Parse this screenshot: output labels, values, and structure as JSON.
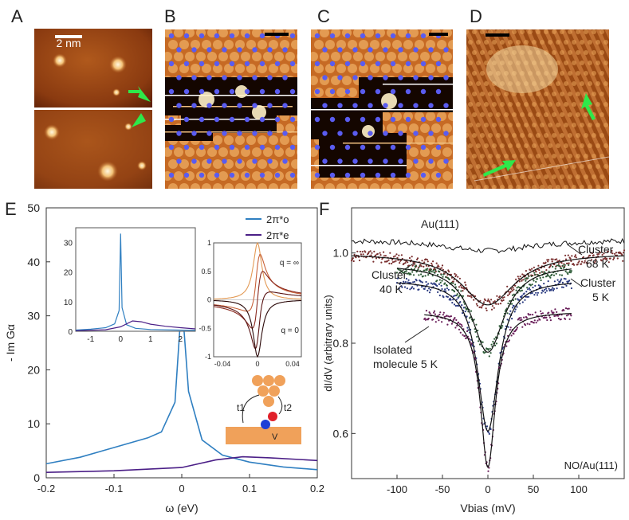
{
  "panel_letters": {
    "a": "A",
    "b": "B",
    "c": "C",
    "d": "D",
    "e": "E",
    "f": "F"
  },
  "panel_a": {
    "scale_label": "2 nm"
  },
  "chart_data": [
    {
      "panel": "E",
      "type": "line",
      "title": "",
      "xlabel": "ω (eV)",
      "ylabel": "- Im Gα",
      "xlim": [
        -0.2,
        0.2
      ],
      "ylim": [
        0,
        50
      ],
      "xticks": [
        "-0.2",
        "-0.1",
        "0",
        "0.1",
        "0.2"
      ],
      "yticks": [
        "0",
        "10",
        "20",
        "30",
        "40",
        "50"
      ],
      "legend": [
        "2π*o",
        "2π*e"
      ],
      "legend_position": "top-right",
      "series": [
        {
          "name": "2π*o",
          "color": "#2f7fc1",
          "x": [
            -0.2,
            -0.15,
            -0.1,
            -0.05,
            -0.03,
            -0.01,
            0,
            0.01,
            0.03,
            0.06,
            0.1,
            0.15,
            0.2
          ],
          "y": [
            2.6,
            3.8,
            5.6,
            7.4,
            8.5,
            14,
            33,
            16,
            7,
            4.2,
            2.9,
            2.0,
            1.5
          ]
        },
        {
          "name": "2π*e",
          "color": "#4b1f87",
          "x": [
            -0.2,
            -0.1,
            0,
            0.05,
            0.09,
            0.13,
            0.2
          ],
          "y": [
            1.0,
            1.3,
            1.9,
            3.3,
            3.9,
            3.7,
            3.2
          ]
        }
      ],
      "inset_wide": {
        "xlim": [
          -1.5,
          2.5
        ],
        "ylim": [
          0,
          35
        ],
        "xticks": [
          "-1",
          "0",
          "1",
          "2"
        ],
        "yticks": [
          "0",
          "10",
          "20",
          "30"
        ],
        "series": [
          {
            "name": "2π*o",
            "x": [
              -1.5,
              -1,
              -0.5,
              -0.2,
              -0.05,
              0,
              0.05,
              0.2,
              0.5,
              1,
              2.5
            ],
            "y": [
              0.4,
              0.7,
              1.2,
              2.5,
              7,
              33,
              8,
              2.2,
              1.0,
              0.6,
              0.3
            ]
          },
          {
            "name": "2π*e",
            "x": [
              -1.5,
              -0.5,
              0,
              0.4,
              0.7,
              1.0,
              1.5,
              2.0,
              2.5
            ],
            "y": [
              0.2,
              0.5,
              1.5,
              3.5,
              3.2,
              2.4,
              1.7,
              1.2,
              0.8
            ]
          }
        ]
      },
      "inset_fano": {
        "xlim": [
          -0.05,
          0.05
        ],
        "ylim": [
          -1,
          1
        ],
        "xticks": [
          "-0.04",
          "0",
          "0.04"
        ],
        "yticks": [
          "-1",
          "-0.5",
          "0",
          "0.5",
          "1"
        ],
        "annotations": [
          "q = ∞",
          "q = 0"
        ]
      },
      "inset_schematic": {
        "labels": [
          "t1",
          "t2",
          "V"
        ]
      }
    },
    {
      "panel": "F",
      "type": "scatter",
      "title": "",
      "xlabel": "Vbias (mV)",
      "ylabel": "dI/dV (arbitrary units)",
      "xlim": [
        -150,
        150
      ],
      "ylim": [
        0.5,
        1.1
      ],
      "xticks": [
        "-100",
        "-50",
        "0",
        "50",
        "100"
      ],
      "yticks": [
        "0.6",
        "0.8",
        "1.0"
      ],
      "corner_label": "NO/Au(111)",
      "annotations": [
        "Au(111)",
        "Cluster 40 K",
        "Cluster 68 K",
        "Cluster 5 K",
        "Isolated molecule 5 K"
      ],
      "series": [
        {
          "name": "Au(111)",
          "color": "#111111",
          "baseline": 1.03,
          "depth": 0.025,
          "width": 60,
          "xmin": -150,
          "xmax": 150
        },
        {
          "name": "Cluster 68 K",
          "color": "#7a2f2f",
          "baseline": 1.0,
          "depth": 0.115,
          "width": 36,
          "xmin": -150,
          "xmax": 150
        },
        {
          "name": "Cluster 40 K",
          "color": "#2c5a36",
          "baseline": 0.975,
          "depth": 0.195,
          "width": 22,
          "xmin": -100,
          "xmax": 92
        },
        {
          "name": "Cluster 5 K",
          "color": "#2a3a80",
          "baseline": 0.94,
          "depth": 0.335,
          "width": 14,
          "xmin": -100,
          "xmax": 92
        },
        {
          "name": "Isolated molecule 5 K",
          "color": "#6a1f5a",
          "baseline": 0.87,
          "depth": 0.345,
          "width": 10,
          "xmin": -70,
          "xmax": 92
        }
      ]
    }
  ]
}
